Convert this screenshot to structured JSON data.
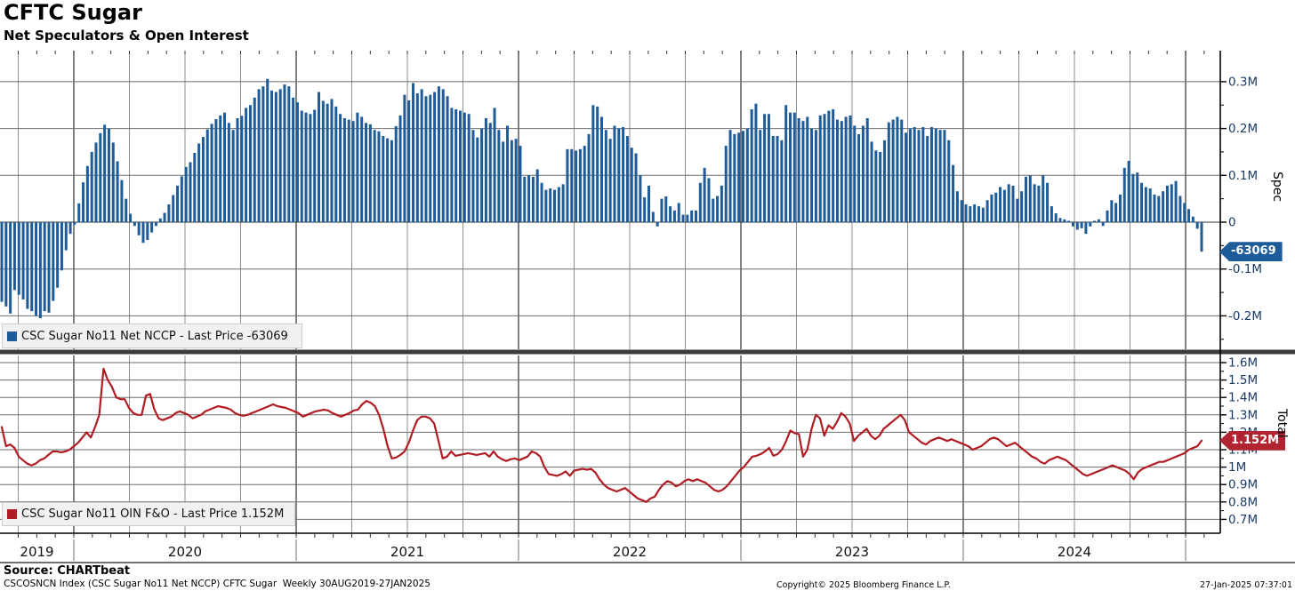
{
  "header": {
    "title": "CFTC Sugar",
    "subtitle": "Net Speculators & Open Interest"
  },
  "panels": {
    "spec": {
      "axis_title": "Spec",
      "badge": "-63069",
      "legend": "CSC Sugar No11 Net NCCP - Last Price -63069",
      "tick_labels": [
        "0.3M",
        "0.2M",
        "0.1M",
        "0",
        "-0.1M",
        "-0.2M"
      ],
      "tick_values": [
        0.3,
        0.2,
        0.1,
        0,
        -0.1,
        -0.2
      ]
    },
    "total": {
      "axis_title": "Total",
      "badge": "1.152M",
      "legend": "CSC Sugar No11 OIN F&O - Last Price 1.152M",
      "tick_labels": [
        "1.6M",
        "1.5M",
        "1.4M",
        "1.3M",
        "1.2M",
        "1.1M",
        "1M",
        "0.9M",
        "0.8M",
        "0.7M"
      ],
      "tick_values": [
        1.6,
        1.5,
        1.4,
        1.3,
        1.2,
        1.1,
        1.0,
        0.9,
        0.8,
        0.7
      ]
    }
  },
  "x_axis": {
    "years": [
      "2019",
      "2020",
      "2021",
      "2022",
      "2023",
      "2024"
    ]
  },
  "footer": {
    "source": "Source: CHARTbeat",
    "index_line": "CSCOSNCN Index (CSC Sugar No11 Net NCCP) CFTC Sugar  Weekly 30AUG2019-27JAN2025",
    "copyright": "Copyright© 2025 Bloomberg Finance L.P.",
    "timestamp": "27-Jan-2025 07:37:01"
  },
  "colors": {
    "bar": "#1e5c99",
    "line": "#b01c24",
    "spec_badge_bg": "#1e5c99",
    "total_badge_bg": "#b02330",
    "grid": "#8f8f8f",
    "grid_year": "#4d4d4d",
    "hgrid": "#6e6e6e",
    "zero_line": "#333333",
    "axis_text": "#1a3a64",
    "year_text": "#111111",
    "frame": "#1c1c1c"
  },
  "chart_data": [
    {
      "name": "CSC Sugar No11 Net NCCP",
      "type": "bar",
      "panel": "Spec",
      "frequency": "weekly",
      "start": "30AUG2019",
      "end": "27JAN2025",
      "unit": "net position, thousands of contracts",
      "last_price": -63069,
      "ylim_m": [
        -0.25,
        0.33
      ],
      "values": [
        -170,
        -180,
        -195,
        -145,
        -155,
        -165,
        -185,
        -190,
        -200,
        -205,
        -190,
        -193,
        -168,
        -140,
        -103,
        -60,
        -25,
        -5,
        40,
        85,
        120,
        150,
        170,
        190,
        208,
        200,
        170,
        130,
        90,
        50,
        18,
        -8,
        -28,
        -44,
        -38,
        -22,
        -8,
        8,
        20,
        38,
        58,
        78,
        98,
        118,
        128,
        148,
        168,
        182,
        198,
        210,
        220,
        228,
        234,
        212,
        197,
        222,
        227,
        244,
        250,
        266,
        284,
        290,
        306,
        281,
        278,
        284,
        294,
        290,
        266,
        256,
        238,
        234,
        231,
        240,
        278,
        259,
        253,
        263,
        247,
        231,
        222,
        219,
        216,
        234,
        225,
        212,
        209,
        197,
        194,
        184,
        179,
        175,
        205,
        228,
        272,
        260,
        297,
        275,
        284,
        269,
        272,
        278,
        290,
        284,
        269,
        244,
        241,
        238,
        234,
        231,
        197,
        181,
        200,
        222,
        212,
        244,
        197,
        172,
        206,
        175,
        178,
        163,
        97,
        100,
        97,
        113,
        84,
        69,
        72,
        69,
        75,
        81,
        156,
        156,
        153,
        156,
        163,
        188,
        250,
        247,
        225,
        197,
        178,
        206,
        200,
        203,
        184,
        159,
        147,
        100,
        53,
        78,
        22,
        -9,
        50,
        55,
        34,
        25,
        41,
        16,
        16,
        25,
        25,
        84,
        116,
        94,
        50,
        56,
        78,
        163,
        197,
        188,
        191,
        195,
        200,
        241,
        253,
        197,
        231,
        231,
        184,
        184,
        175,
        250,
        234,
        234,
        222,
        216,
        225,
        200,
        197,
        228,
        231,
        238,
        241,
        219,
        216,
        225,
        228,
        206,
        188,
        206,
        222,
        172,
        153,
        150,
        175,
        213,
        219,
        225,
        219,
        191,
        200,
        203,
        197,
        203,
        184,
        203,
        200,
        197,
        197,
        175,
        122,
        66,
        47,
        38,
        34,
        38,
        34,
        31,
        47,
        59,
        63,
        75,
        69,
        81,
        78,
        50,
        66,
        97,
        100,
        81,
        78,
        100,
        84,
        34,
        19,
        9,
        6,
        3,
        -9,
        -16,
        -13,
        -25,
        -9,
        3,
        6,
        -8,
        25,
        47,
        41,
        59,
        116,
        131,
        103,
        106,
        84,
        75,
        72,
        59,
        56,
        66,
        78,
        81,
        88,
        56,
        41,
        28,
        12,
        -14,
        -63
      ]
    },
    {
      "name": "CSC Sugar No11 OIN F&O",
      "type": "line",
      "panel": "Total",
      "frequency": "weekly",
      "start": "30AUG2019",
      "end": "27JAN2025",
      "unit": "open interest, millions of contracts",
      "last_price": "1.152M",
      "ylim_m": [
        0.65,
        1.65
      ],
      "values": [
        1.23,
        1.12,
        1.13,
        1.11,
        1.06,
        1.04,
        1.02,
        1.01,
        1.02,
        1.04,
        1.05,
        1.07,
        1.09,
        1.09,
        1.085,
        1.09,
        1.1,
        1.12,
        1.14,
        1.17,
        1.2,
        1.17,
        1.23,
        1.3,
        1.565,
        1.5,
        1.46,
        1.4,
        1.39,
        1.39,
        1.34,
        1.31,
        1.3,
        1.3,
        1.41,
        1.42,
        1.33,
        1.28,
        1.27,
        1.28,
        1.29,
        1.31,
        1.32,
        1.31,
        1.3,
        1.28,
        1.29,
        1.3,
        1.32,
        1.33,
        1.34,
        1.35,
        1.345,
        1.34,
        1.33,
        1.31,
        1.3,
        1.295,
        1.3,
        1.31,
        1.32,
        1.33,
        1.34,
        1.35,
        1.36,
        1.35,
        1.345,
        1.34,
        1.33,
        1.32,
        1.31,
        1.29,
        1.3,
        1.31,
        1.32,
        1.325,
        1.33,
        1.325,
        1.31,
        1.3,
        1.29,
        1.3,
        1.31,
        1.325,
        1.33,
        1.36,
        1.38,
        1.37,
        1.35,
        1.3,
        1.22,
        1.12,
        1.05,
        1.055,
        1.07,
        1.09,
        1.14,
        1.21,
        1.27,
        1.29,
        1.29,
        1.28,
        1.25,
        1.15,
        1.05,
        1.06,
        1.09,
        1.065,
        1.07,
        1.075,
        1.08,
        1.075,
        1.07,
        1.075,
        1.08,
        1.06,
        1.09,
        1.06,
        1.045,
        1.035,
        1.045,
        1.05,
        1.04,
        1.05,
        1.06,
        1.09,
        1.08,
        1.06,
        1.0,
        0.96,
        0.955,
        0.95,
        0.96,
        0.975,
        0.95,
        0.98,
        0.985,
        0.99,
        0.985,
        0.99,
        0.97,
        0.93,
        0.9,
        0.88,
        0.87,
        0.86,
        0.87,
        0.88,
        0.86,
        0.84,
        0.82,
        0.81,
        0.8,
        0.82,
        0.83,
        0.87,
        0.9,
        0.92,
        0.91,
        0.89,
        0.9,
        0.92,
        0.93,
        0.92,
        0.93,
        0.92,
        0.91,
        0.89,
        0.87,
        0.86,
        0.87,
        0.89,
        0.92,
        0.95,
        0.98,
        1.0,
        1.03,
        1.06,
        1.065,
        1.075,
        1.09,
        1.11,
        1.065,
        1.075,
        1.1,
        1.15,
        1.21,
        1.195,
        1.19,
        1.06,
        1.1,
        1.22,
        1.3,
        1.28,
        1.18,
        1.24,
        1.22,
        1.26,
        1.31,
        1.29,
        1.25,
        1.15,
        1.18,
        1.2,
        1.22,
        1.18,
        1.16,
        1.18,
        1.22,
        1.24,
        1.26,
        1.28,
        1.3,
        1.27,
        1.2,
        1.18,
        1.16,
        1.14,
        1.13,
        1.15,
        1.16,
        1.17,
        1.16,
        1.15,
        1.16,
        1.15,
        1.14,
        1.13,
        1.12,
        1.1,
        1.11,
        1.12,
        1.14,
        1.16,
        1.17,
        1.16,
        1.14,
        1.12,
        1.13,
        1.14,
        1.12,
        1.1,
        1.08,
        1.06,
        1.05,
        1.03,
        1.02,
        1.04,
        1.05,
        1.06,
        1.05,
        1.04,
        1.02,
        1.0,
        0.98,
        0.96,
        0.95,
        0.96,
        0.97,
        0.98,
        0.99,
        1.0,
        1.01,
        1.0,
        0.99,
        0.98,
        0.96,
        0.93,
        0.97,
        0.99,
        1.0,
        1.01,
        1.02,
        1.03,
        1.03,
        1.04,
        1.05,
        1.06,
        1.07,
        1.08,
        1.1,
        1.11,
        1.12,
        1.152
      ]
    }
  ]
}
